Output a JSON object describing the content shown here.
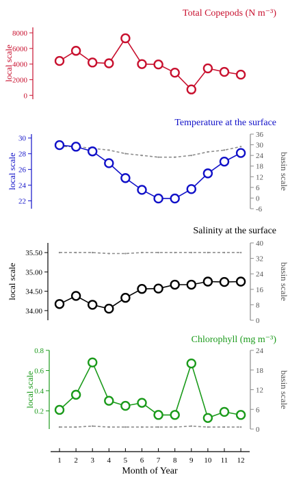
{
  "colors": {
    "copepods": "#c8102e",
    "temperature": "#1010c8",
    "salinity": "#000000",
    "chlorophyll": "#1a9a1a",
    "basin": "#8c8c8c"
  },
  "chart_data": [
    {
      "type": "line",
      "title": "Total Copepods (N m⁻³)",
      "ylabel": "local scale",
      "ylim": [
        -500,
        8700
      ],
      "yticks": [
        0,
        2000,
        4000,
        6000,
        8000
      ],
      "x": [
        1,
        2,
        3,
        4,
        5,
        6,
        7,
        8,
        9,
        10,
        11,
        12
      ],
      "series": [
        {
          "role": "local",
          "values": [
            4400,
            5700,
            4200,
            4100,
            7300,
            4000,
            3950,
            2900,
            750,
            3450,
            3000,
            2650
          ]
        }
      ]
    },
    {
      "type": "line",
      "title": "Temperature at the surface",
      "ylabel": "local scale",
      "ylabel_right": "basin scale",
      "ylim": [
        21,
        30.5
      ],
      "yticks": [
        22,
        24,
        26,
        28,
        30
      ],
      "ylim_right": [
        -6,
        36
      ],
      "yticks_right": [
        -6,
        0,
        6,
        12,
        18,
        24,
        30,
        36
      ],
      "x": [
        1,
        2,
        3,
        4,
        5,
        6,
        7,
        8,
        9,
        10,
        11,
        12
      ],
      "series": [
        {
          "role": "local",
          "values": [
            29.1,
            28.9,
            28.3,
            26.8,
            24.9,
            23.4,
            22.3,
            22.3,
            23.5,
            25.5,
            27.0,
            28.1
          ]
        },
        {
          "role": "basin",
          "values": [
            29,
            29,
            28,
            27,
            25,
            24,
            23,
            23,
            24,
            26,
            27,
            29
          ]
        }
      ]
    },
    {
      "type": "line",
      "title": "Salinity at the surface",
      "ylabel": "local scale",
      "ylabel_right": "basin scale",
      "ylim": [
        33.75,
        35.75
      ],
      "yticks": [
        34.0,
        34.5,
        35.0,
        35.5
      ],
      "yticks_text": [
        "34.00",
        "34.50",
        "35.00",
        "35.50"
      ],
      "ylim_right": [
        0,
        40
      ],
      "yticks_right": [
        0,
        8,
        16,
        24,
        32,
        40
      ],
      "x": [
        1,
        2,
        3,
        4,
        5,
        6,
        7,
        8,
        9,
        10,
        11,
        12
      ],
      "series": [
        {
          "role": "local",
          "values": [
            34.17,
            34.38,
            34.15,
            34.05,
            34.33,
            34.56,
            34.57,
            34.67,
            34.67,
            34.75,
            34.74,
            34.75
          ]
        },
        {
          "role": "basin",
          "values": [
            35,
            35,
            35,
            34.5,
            34.5,
            35,
            35,
            35,
            35,
            35,
            35,
            35
          ]
        }
      ]
    },
    {
      "type": "line",
      "title": "Chlorophyll (mg m⁻³)",
      "ylabel": "local scale",
      "ylabel_right": "basin scale",
      "ylim": [
        0.02,
        0.8
      ],
      "yticks": [
        0.2,
        0.4,
        0.6,
        0.8
      ],
      "ylim_right": [
        0,
        24
      ],
      "yticks_right": [
        0,
        6,
        12,
        18,
        24
      ],
      "xlabel": "Month of Year",
      "xticks": [
        "1",
        "2",
        "3",
        "4",
        "5",
        "6",
        "7",
        "8",
        "9",
        "10",
        "11",
        "12"
      ],
      "x": [
        1,
        2,
        3,
        4,
        5,
        6,
        7,
        8,
        9,
        10,
        11,
        12
      ],
      "series": [
        {
          "role": "local",
          "values": [
            0.21,
            0.36,
            0.68,
            0.3,
            0.25,
            0.28,
            0.16,
            0.16,
            0.67,
            0.13,
            0.19,
            0.16
          ]
        },
        {
          "role": "basin",
          "values": [
            0.6,
            0.6,
            0.9,
            0.6,
            0.6,
            0.6,
            0.6,
            0.6,
            0.9,
            0.6,
            0.6,
            0.6
          ]
        }
      ]
    }
  ]
}
